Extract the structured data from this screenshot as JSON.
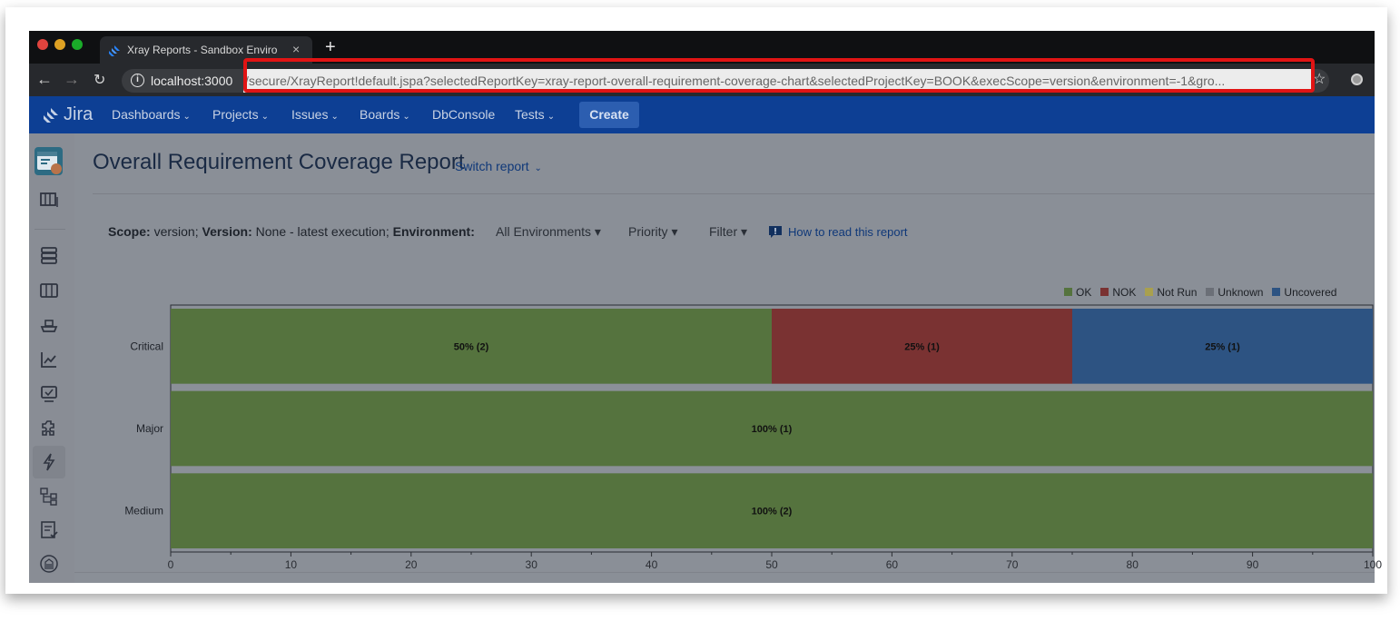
{
  "browser": {
    "tab_title": "Xray Reports - Sandbox Enviro",
    "tab_close": "×",
    "new_tab": "+",
    "url_host": "localhost:3000",
    "url_path": "/secure/XrayReport!default.jspa?selectedReportKey=xray-report-overall-requirement-coverage-chart&selectedProjectKey=BOOK&execScope=version&environment=-1&gro..."
  },
  "jira": {
    "logo_text": "Jira",
    "nav": [
      {
        "label": "Dashboards"
      },
      {
        "label": "Projects"
      },
      {
        "label": "Issues"
      },
      {
        "label": "Boards"
      },
      {
        "label": "DbConsole"
      },
      {
        "label": "Tests"
      }
    ],
    "create_label": "Create"
  },
  "page": {
    "title": "Overall Requirement Coverage Report",
    "switch_report": "Switch report",
    "filters": {
      "scope_label": "Scope:",
      "scope_value": "version;",
      "version_label": "Version:",
      "version_value": "None - latest execution;",
      "environment_label": "Environment:",
      "environment_value": "All Environments",
      "priority": "Priority",
      "filter": "Filter",
      "help_link": "How to read this report"
    }
  },
  "chart_data": {
    "type": "bar",
    "orientation": "horizontal",
    "stacked": true,
    "categories": [
      "Critical",
      "Major",
      "Medium"
    ],
    "series": [
      {
        "name": "OK",
        "color": "#55733e",
        "values": [
          50,
          100,
          100
        ],
        "labels": [
          "50% (2)",
          "100% (1)",
          "100% (2)"
        ]
      },
      {
        "name": "NOK",
        "color": "#7a3232",
        "values": [
          25,
          0,
          0
        ],
        "labels": [
          "25% (1)",
          "",
          ""
        ]
      },
      {
        "name": "Not Run",
        "color": "#a9a04e",
        "values": [
          0,
          0,
          0
        ],
        "labels": [
          "",
          "",
          ""
        ]
      },
      {
        "name": "Unknown",
        "color": "#6b6f77",
        "values": [
          0,
          0,
          0
        ],
        "labels": [
          "",
          "",
          ""
        ]
      },
      {
        "name": "Uncovered",
        "color": "#2d5382",
        "values": [
          25,
          0,
          0
        ],
        "labels": [
          "25% (1)",
          "",
          ""
        ]
      }
    ],
    "xlim": [
      0,
      100
    ],
    "xticks": [
      0,
      10,
      20,
      30,
      40,
      50,
      60,
      70,
      80,
      90,
      100
    ],
    "legend_position": "top-right"
  }
}
